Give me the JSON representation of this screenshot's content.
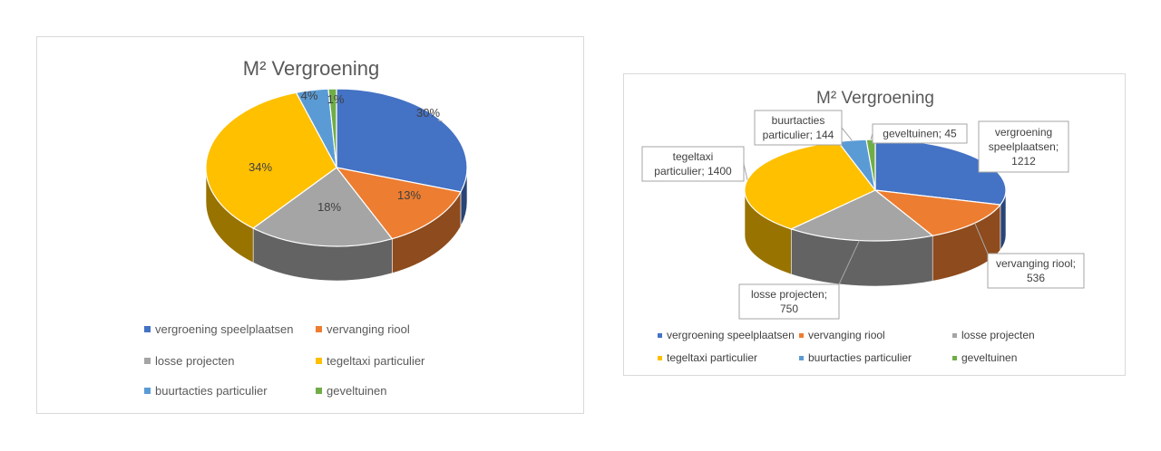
{
  "chart_data": [
    {
      "type": "pie",
      "title": "M² Vergroening",
      "categories": [
        "vergroening speelplaatsen",
        "vervanging riool",
        "losse projecten",
        "tegeltaxi particulier",
        "buurtacties particulier",
        "geveltuinen"
      ],
      "values": [
        30,
        13,
        18,
        34,
        4,
        1
      ],
      "value_labels": [
        "30%",
        "13%",
        "18%",
        "34%",
        "4%",
        "1%"
      ],
      "colors": [
        "#4472c4",
        "#ed7d31",
        "#a5a5a5",
        "#ffc000",
        "#5b9bd5",
        "#70ad47"
      ],
      "legend": "bottom"
    },
    {
      "type": "pie",
      "title": "M² Vergroening",
      "categories": [
        "vergroening speelplaatsen",
        "vervanging riool",
        "losse projecten",
        "tegeltaxi particulier",
        "buurtacties particulier",
        "geveltuinen"
      ],
      "values": [
        1212,
        536,
        750,
        1400,
        144,
        45
      ],
      "callouts": [
        [
          "vergroening",
          "speelplaatsen;",
          "1212"
        ],
        [
          "vervanging riool;",
          "536"
        ],
        [
          "losse projecten;",
          "750"
        ],
        [
          "tegeltaxi",
          "particulier; 1400"
        ],
        [
          "buurtacties",
          "particulier; 144"
        ],
        [
          "geveltuinen; 45"
        ]
      ],
      "colors": [
        "#4472c4",
        "#ed7d31",
        "#a5a5a5",
        "#ffc000",
        "#5b9bd5",
        "#70ad47"
      ],
      "legend": "bottom"
    }
  ]
}
